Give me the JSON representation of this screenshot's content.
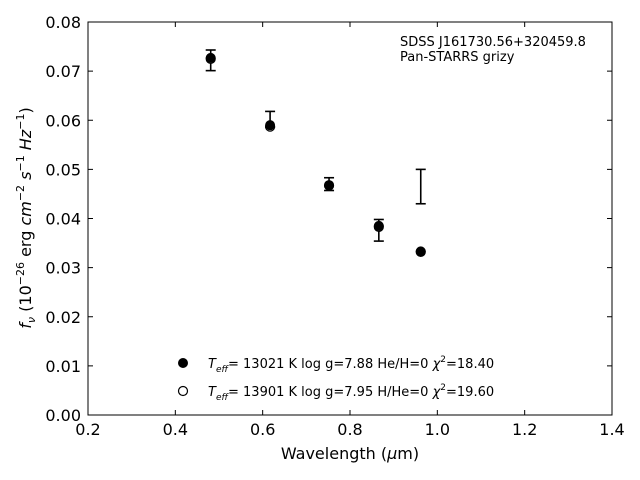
{
  "chart_data": {
    "type": "scatter",
    "xlabel": "Wavelength (μm)",
    "ylabel": "f_ν (10⁻²⁶ erg cm⁻² s⁻¹ Hz⁻¹)",
    "xlim": [
      0.2,
      1.4
    ],
    "ylim": [
      0.0,
      0.08
    ],
    "x_ticks": [
      "0.2",
      "0.4",
      "0.6",
      "0.8",
      "1.0",
      "1.2",
      "1.4"
    ],
    "y_ticks": [
      "0.00",
      "0.01",
      "0.02",
      "0.03",
      "0.04",
      "0.05",
      "0.06",
      "0.07",
      "0.08"
    ],
    "annotation": [
      "SDSS J161730.56+320459.8",
      "Pan-STARRS grizy"
    ],
    "observed": {
      "x": [
        0.481,
        0.617,
        0.752,
        0.866,
        0.962
      ],
      "y": [
        0.0722,
        0.0602,
        0.047,
        0.0376,
        0.0465
      ],
      "yerr": [
        0.0021,
        0.0016,
        0.0013,
        0.0022,
        0.0035
      ]
    },
    "series": [
      {
        "name": "T_eff= 13021 K  log g=7.88  He/H=0  χ²=18.40",
        "marker": "filled-circle",
        "x": [
          0.481,
          0.617,
          0.752,
          0.866,
          0.962
        ],
        "y": [
          0.0727,
          0.059,
          0.0468,
          0.0385,
          0.0333
        ]
      },
      {
        "name": "T_eff= 13901 K  log g=7.95  H/He=0  χ²=19.60",
        "marker": "open-circle",
        "x": [
          0.481,
          0.617,
          0.752,
          0.866,
          0.962
        ],
        "y": [
          0.0725,
          0.0587,
          0.0467,
          0.0383,
          0.0332
        ]
      }
    ],
    "legend_location": "lower-center",
    "legend": [
      {
        "t_label": "T",
        "t_sub": "eff",
        "rest": "= 13021 K  log g=7.88  He/H=0  ",
        "chi": "χ",
        "chi_sup": "2",
        "chi_val": "=18.40"
      },
      {
        "t_label": "T",
        "t_sub": "eff",
        "rest": "= 13901 K  log g=7.95  H/He=0  ",
        "chi": "χ",
        "chi_sup": "2",
        "chi_val": "=19.60"
      }
    ],
    "grid": false,
    "colors": {
      "marker": "#000000",
      "axes": "#000000",
      "background": "#ffffff"
    }
  }
}
